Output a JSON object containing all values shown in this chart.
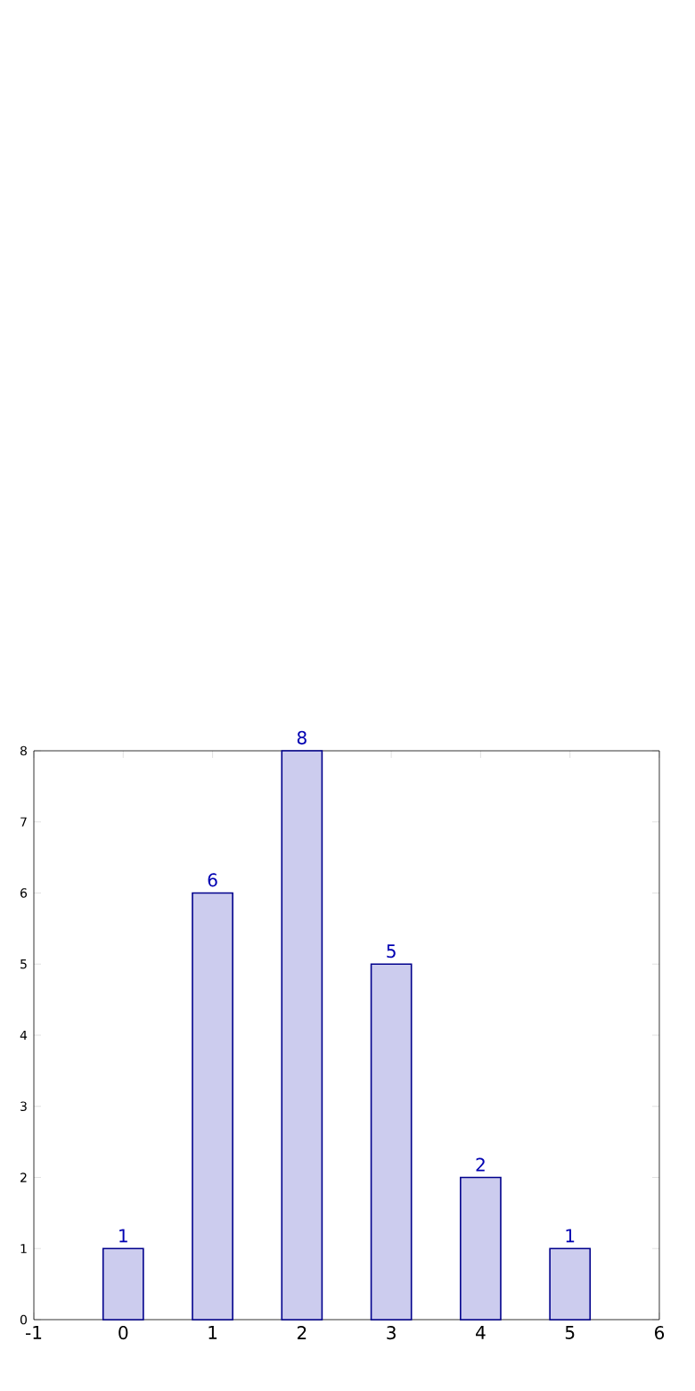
{
  "chart_data": {
    "type": "bar",
    "x": [
      0,
      1,
      2,
      3,
      4,
      5
    ],
    "values": [
      1,
      6,
      8,
      5,
      2,
      1
    ],
    "color": "#ccccee",
    "xlim": [
      -1,
      6
    ],
    "xticks": [
      -1,
      0,
      1,
      2,
      3,
      4,
      5,
      6
    ],
    "ylim": [
      0,
      8
    ],
    "yticks": [
      0,
      1,
      2,
      3,
      4,
      5,
      6,
      7,
      8
    ],
    "data_labels": true
  }
}
